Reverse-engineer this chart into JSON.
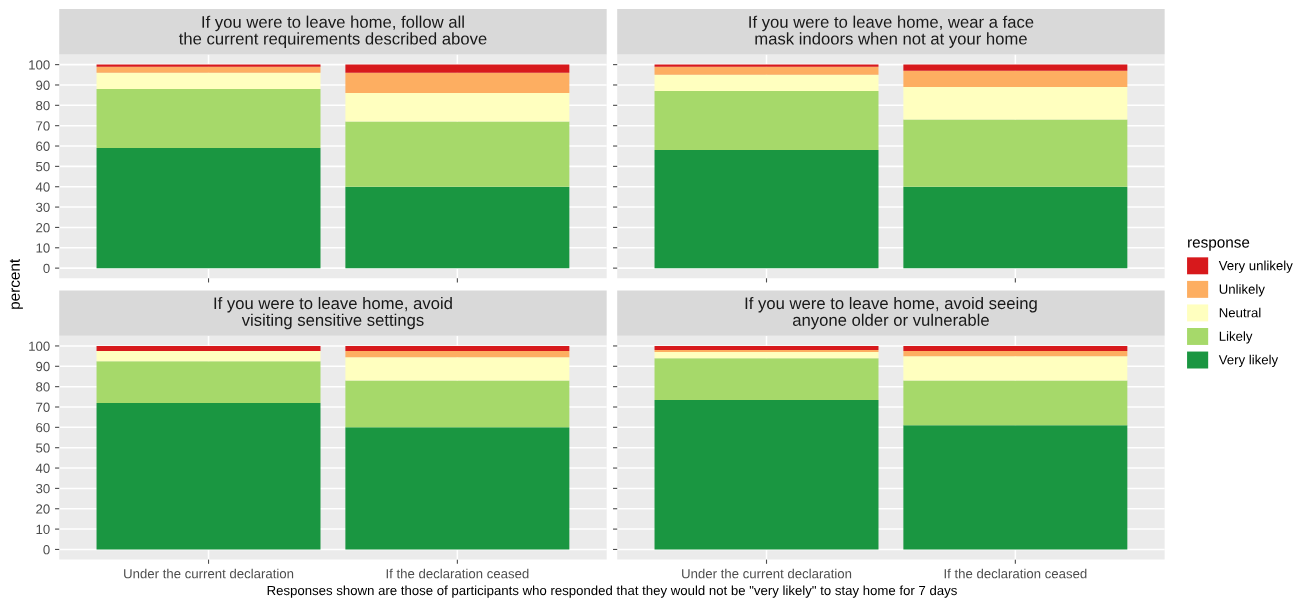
{
  "chart_data": [
    {
      "type": "bar",
      "title": "If you were to leave home, follow all\nthe current requirements described above",
      "ylabel": "percent",
      "legend_title": "response",
      "legend": "right",
      "stacked": true,
      "grid": true,
      "tick_labels": "y",
      "categories": [
        "Under the current declaration",
        "If the declaration ceased"
      ],
      "ylim": [
        -5,
        105
      ],
      "yticks": [
        0,
        10,
        20,
        30,
        40,
        50,
        60,
        70,
        80,
        90,
        100
      ],
      "series": [
        {
          "name": "Very likely",
          "color": "#1a9641",
          "values": [
            59,
            40
          ]
        },
        {
          "name": "Likely",
          "color": "#a6d96a",
          "values": [
            29,
            32
          ]
        },
        {
          "name": "Neutral",
          "color": "#ffffbf",
          "values": [
            8,
            14
          ]
        },
        {
          "name": "Unlikely",
          "color": "#fdae61",
          "values": [
            3,
            10
          ]
        },
        {
          "name": "Very unlikely",
          "color": "#d7191c",
          "values": [
            1,
            4
          ]
        }
      ]
    },
    {
      "type": "bar",
      "title": "If you were to leave home, wear a face\nmask indoors when not at your home",
      "stacked": true,
      "grid": true,
      "tick_labels": false,
      "categories": [
        "Under the current declaration",
        "If the declaration ceased"
      ],
      "ylim": [
        -5,
        105
      ],
      "yticks": [
        0,
        10,
        20,
        30,
        40,
        50,
        60,
        70,
        80,
        90,
        100
      ],
      "series": [
        {
          "name": "Very likely",
          "color": "#1a9641",
          "values": [
            58,
            40
          ]
        },
        {
          "name": "Likely",
          "color": "#a6d96a",
          "values": [
            29,
            33
          ]
        },
        {
          "name": "Neutral",
          "color": "#ffffbf",
          "values": [
            8,
            16
          ]
        },
        {
          "name": "Unlikely",
          "color": "#fdae61",
          "values": [
            4,
            8
          ]
        },
        {
          "name": "Very unlikely",
          "color": "#d7191c",
          "values": [
            1,
            3
          ]
        }
      ]
    },
    {
      "type": "bar",
      "title": "If you were to leave home, avoid\nvisiting sensitive settings",
      "annotations": [
        "Responses shown are those of participants who responded that they would not be \"very likely\" to stay home for 7 days"
      ],
      "stacked": true,
      "grid": true,
      "categories": [
        "Under the current declaration",
        "If the declaration ceased"
      ],
      "ylim": [
        -5,
        105
      ],
      "yticks": [
        0,
        10,
        20,
        30,
        40,
        50,
        60,
        70,
        80,
        90,
        100
      ],
      "series": [
        {
          "name": "Very likely",
          "color": "#1a9641",
          "values": [
            72,
            60
          ]
        },
        {
          "name": "Likely",
          "color": "#a6d96a",
          "values": [
            20.5,
            23
          ]
        },
        {
          "name": "Neutral",
          "color": "#ffffbf",
          "values": [
            5,
            11.5
          ]
        },
        {
          "name": "Unlikely",
          "color": "#fdae61",
          "values": [
            0,
            3
          ]
        },
        {
          "name": "Very unlikely",
          "color": "#d7191c",
          "values": [
            2.5,
            2.5
          ]
        }
      ]
    },
    {
      "type": "bar",
      "title": "If you were to leave home, avoid seeing\nanyone older or vulnerable",
      "stacked": true,
      "grid": true,
      "tick_labels": "x",
      "categories": [
        "Under the current declaration",
        "If the declaration ceased"
      ],
      "ylim": [
        -5,
        105
      ],
      "yticks": [
        0,
        10,
        20,
        30,
        40,
        50,
        60,
        70,
        80,
        90,
        100
      ],
      "series": [
        {
          "name": "Very likely",
          "color": "#1a9641",
          "values": [
            73.5,
            61
          ]
        },
        {
          "name": "Likely",
          "color": "#a6d96a",
          "values": [
            20.5,
            22
          ]
        },
        {
          "name": "Neutral",
          "color": "#ffffbf",
          "values": [
            3,
            12
          ]
        },
        {
          "name": "Unlikely",
          "color": "#fdae61",
          "values": [
            1,
            2.5
          ]
        },
        {
          "name": "Very unlikely",
          "color": "#d7191c",
          "values": [
            2,
            2.5
          ]
        }
      ]
    }
  ]
}
